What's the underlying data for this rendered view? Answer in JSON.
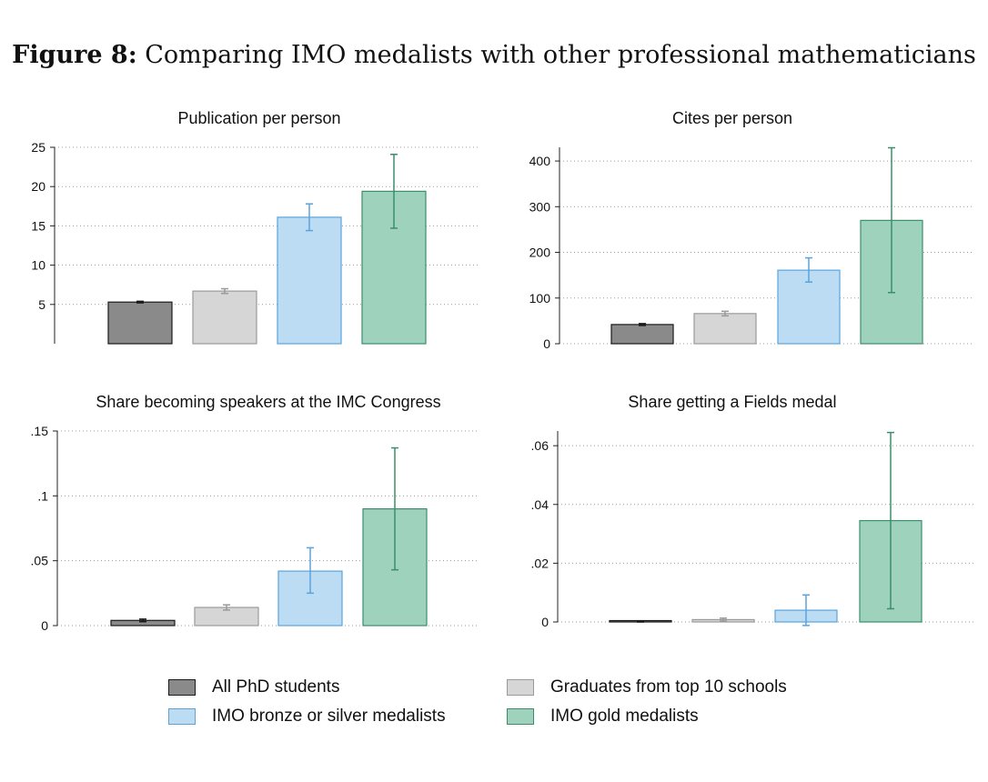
{
  "figure": {
    "label": "Figure 8:",
    "title": "Comparing IMO medalists with other professional mathematicians"
  },
  "colors": {
    "all_phd_fill": "#8a8a8a",
    "all_phd_stroke": "#1a1a1a",
    "top10_fill": "#d6d6d6",
    "top10_stroke": "#9a9a9a",
    "bronze_silver_fill": "#bcdcf3",
    "bronze_silver_stroke": "#5aa3dd",
    "gold_fill": "#9ed2bd",
    "gold_stroke": "#3a8f6c",
    "grid": "#999999"
  },
  "legend": [
    {
      "label": "All PhD students",
      "fill": "#8a8a8a",
      "stroke": "#1a1a1a"
    },
    {
      "label": "Graduates from top 10 schools",
      "fill": "#d6d6d6",
      "stroke": "#9a9a9a"
    },
    {
      "label": "IMO bronze or silver medalists",
      "fill": "#bcdcf3",
      "stroke": "#5aa3dd"
    },
    {
      "label": "IMO gold medalists",
      "fill": "#9ed2bd",
      "stroke": "#3a8f6c"
    }
  ],
  "chart_data": [
    {
      "type": "bar",
      "title": "Publication per person",
      "categories": [
        "All PhD students",
        "Graduates from top 10 schools",
        "IMO bronze or silver medalists",
        "IMO gold medalists"
      ],
      "values": [
        5.3,
        6.7,
        16.1,
        19.4
      ],
      "ci_low": [
        5.2,
        6.4,
        14.4,
        14.7
      ],
      "ci_high": [
        5.4,
        7.0,
        17.8,
        24.1
      ],
      "ylim": [
        0,
        25
      ],
      "yticks": [
        5,
        10,
        15,
        20,
        25
      ],
      "ytick_labels": [
        "5",
        "10",
        "15",
        "20",
        "25"
      ],
      "grid": true,
      "xlabel": "",
      "ylabel": ""
    },
    {
      "type": "bar",
      "title": "Cites per person",
      "categories": [
        "All PhD students",
        "Graduates from top 10 schools",
        "IMO bronze or silver medalists",
        "IMO gold medalists"
      ],
      "values": [
        42,
        66,
        161,
        270
      ],
      "ci_low": [
        40,
        61,
        135,
        112
      ],
      "ci_high": [
        44,
        71,
        188,
        429
      ],
      "ylim": [
        0,
        430
      ],
      "yticks": [
        0,
        100,
        200,
        300,
        400
      ],
      "ytick_labels": [
        "0",
        "100",
        "200",
        "300",
        "400"
      ],
      "grid": true,
      "xlabel": "",
      "ylabel": ""
    },
    {
      "type": "bar",
      "title": "Share becoming speakers at the IMC Congress",
      "categories": [
        "All PhD students",
        "Graduates from top 10 schools",
        "IMO bronze or silver medalists",
        "IMO gold medalists"
      ],
      "values": [
        0.004,
        0.014,
        0.042,
        0.09
      ],
      "ci_low": [
        0.003,
        0.012,
        0.025,
        0.043
      ],
      "ci_high": [
        0.005,
        0.016,
        0.06,
        0.137
      ],
      "ylim": [
        0,
        0.15
      ],
      "yticks": [
        0,
        0.05,
        0.1,
        0.15
      ],
      "ytick_labels": [
        "0",
        ".05",
        ".1",
        ".15"
      ],
      "grid": true,
      "xlabel": "",
      "ylabel": ""
    },
    {
      "type": "bar",
      "title": "Share getting a Fields medal",
      "categories": [
        "All PhD students",
        "Graduates from top 10 schools",
        "IMO bronze or silver medalists",
        "IMO gold medalists"
      ],
      "values": [
        0.0001,
        0.0008,
        0.004,
        0.0345
      ],
      "ci_low": [
        0.0,
        0.0003,
        -0.0012,
        0.0045
      ],
      "ci_high": [
        0.0002,
        0.0013,
        0.0092,
        0.0645
      ],
      "ylim": [
        0,
        0.065
      ],
      "yticks": [
        0,
        0.02,
        0.04,
        0.06
      ],
      "ytick_labels": [
        "0",
        ".02",
        ".04",
        ".06"
      ],
      "grid": true,
      "xlabel": "",
      "ylabel": ""
    }
  ]
}
